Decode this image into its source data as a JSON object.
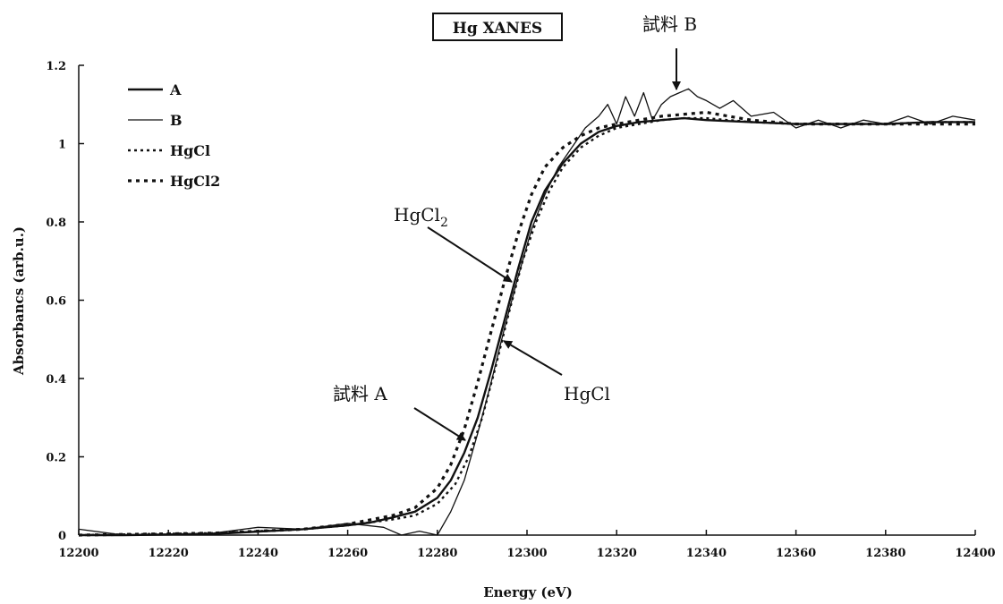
{
  "chart_data": {
    "type": "line",
    "title": "Hg XANES",
    "xlabel": "Energy (eV)",
    "ylabel": "Absorbancs (arb.u.)",
    "xlim": [
      12200,
      12400
    ],
    "ylim": [
      0,
      1.2
    ],
    "xticks": [
      12200,
      12220,
      12240,
      12260,
      12280,
      12300,
      12320,
      12340,
      12360,
      12380,
      12400
    ],
    "yticks": [
      0,
      0.2,
      0.4,
      0.6,
      0.8,
      1,
      1.2
    ],
    "legend_position": "top-left",
    "grid": false,
    "series": [
      {
        "name": "A",
        "style": "solid-thick",
        "x": [
          12200,
          12210,
          12230,
          12250,
          12260,
          12265,
          12270,
          12275,
          12280,
          12283,
          12286,
          12289,
          12292,
          12295,
          12298,
          12301,
          12304,
          12308,
          12312,
          12316,
          12320,
          12325,
          12330,
          12335,
          12340,
          12350,
          12360,
          12370,
          12380,
          12390,
          12400
        ],
        "y": [
          0,
          0,
          0.003,
          0.015,
          0.025,
          0.032,
          0.045,
          0.06,
          0.095,
          0.14,
          0.21,
          0.3,
          0.42,
          0.55,
          0.68,
          0.8,
          0.88,
          0.95,
          1.0,
          1.03,
          1.045,
          1.055,
          1.06,
          1.065,
          1.06,
          1.055,
          1.05,
          1.05,
          1.05,
          1.055,
          1.055
        ]
      },
      {
        "name": "B",
        "style": "solid-thin-noisy",
        "x": [
          12200,
          12210,
          12230,
          12240,
          12250,
          12260,
          12268,
          12272,
          12276,
          12280,
          12283,
          12286,
          12289,
          12292,
          12295,
          12298,
          12301,
          12304,
          12307,
          12310,
          12313,
          12316,
          12318,
          12320,
          12322,
          12324,
          12326,
          12328,
          12330,
          12332,
          12334,
          12336,
          12338,
          12340,
          12343,
          12346,
          12350,
          12355,
          12360,
          12365,
          12370,
          12375,
          12380,
          12385,
          12390,
          12395,
          12400
        ],
        "y": [
          0.015,
          0,
          0.005,
          0.02,
          0.015,
          0.03,
          0.02,
          0.0,
          0.01,
          0.0,
          0.06,
          0.14,
          0.26,
          0.39,
          0.53,
          0.66,
          0.78,
          0.87,
          0.94,
          0.99,
          1.04,
          1.07,
          1.1,
          1.05,
          1.12,
          1.07,
          1.13,
          1.06,
          1.1,
          1.12,
          1.13,
          1.14,
          1.12,
          1.11,
          1.09,
          1.11,
          1.07,
          1.08,
          1.04,
          1.06,
          1.04,
          1.06,
          1.05,
          1.07,
          1.05,
          1.07,
          1.06
        ]
      },
      {
        "name": "HgCl",
        "style": "dotted",
        "x": [
          12200,
          12230,
          12250,
          12260,
          12270,
          12275,
          12280,
          12284,
          12287,
          12290,
          12293,
          12296,
          12299,
          12302,
          12305,
          12308,
          12312,
          12316,
          12320,
          12325,
          12330,
          12335,
          12340,
          12350,
          12360,
          12370,
          12380,
          12390,
          12400
        ],
        "y": [
          0,
          0.005,
          0.015,
          0.025,
          0.04,
          0.05,
          0.08,
          0.13,
          0.2,
          0.3,
          0.43,
          0.57,
          0.7,
          0.8,
          0.88,
          0.94,
          0.99,
          1.02,
          1.04,
          1.05,
          1.06,
          1.065,
          1.065,
          1.055,
          1.05,
          1.05,
          1.05,
          1.055,
          1.055
        ]
      },
      {
        "name": "HgCl2",
        "style": "dotted-heavy",
        "x": [
          12200,
          12230,
          12250,
          12260,
          12270,
          12275,
          12280,
          12283,
          12286,
          12289,
          12292,
          12295,
          12298,
          12301,
          12304,
          12308,
          12312,
          12316,
          12320,
          12325,
          12330,
          12335,
          12340,
          12345,
          12350,
          12360,
          12370,
          12380,
          12390,
          12400
        ],
        "y": [
          0,
          0.005,
          0.015,
          0.028,
          0.05,
          0.07,
          0.12,
          0.18,
          0.27,
          0.39,
          0.52,
          0.65,
          0.77,
          0.87,
          0.94,
          0.99,
          1.02,
          1.04,
          1.05,
          1.06,
          1.07,
          1.075,
          1.08,
          1.07,
          1.06,
          1.05,
          1.05,
          1.05,
          1.05,
          1.05
        ]
      }
    ],
    "annotations": [
      {
        "id": "sample-b",
        "text": "試料 B"
      },
      {
        "id": "hgcl2",
        "text": "HgCl",
        "sub": "2"
      },
      {
        "id": "hgcl",
        "text": "HgCl"
      },
      {
        "id": "sample-a",
        "text": "試料 A"
      }
    ]
  }
}
